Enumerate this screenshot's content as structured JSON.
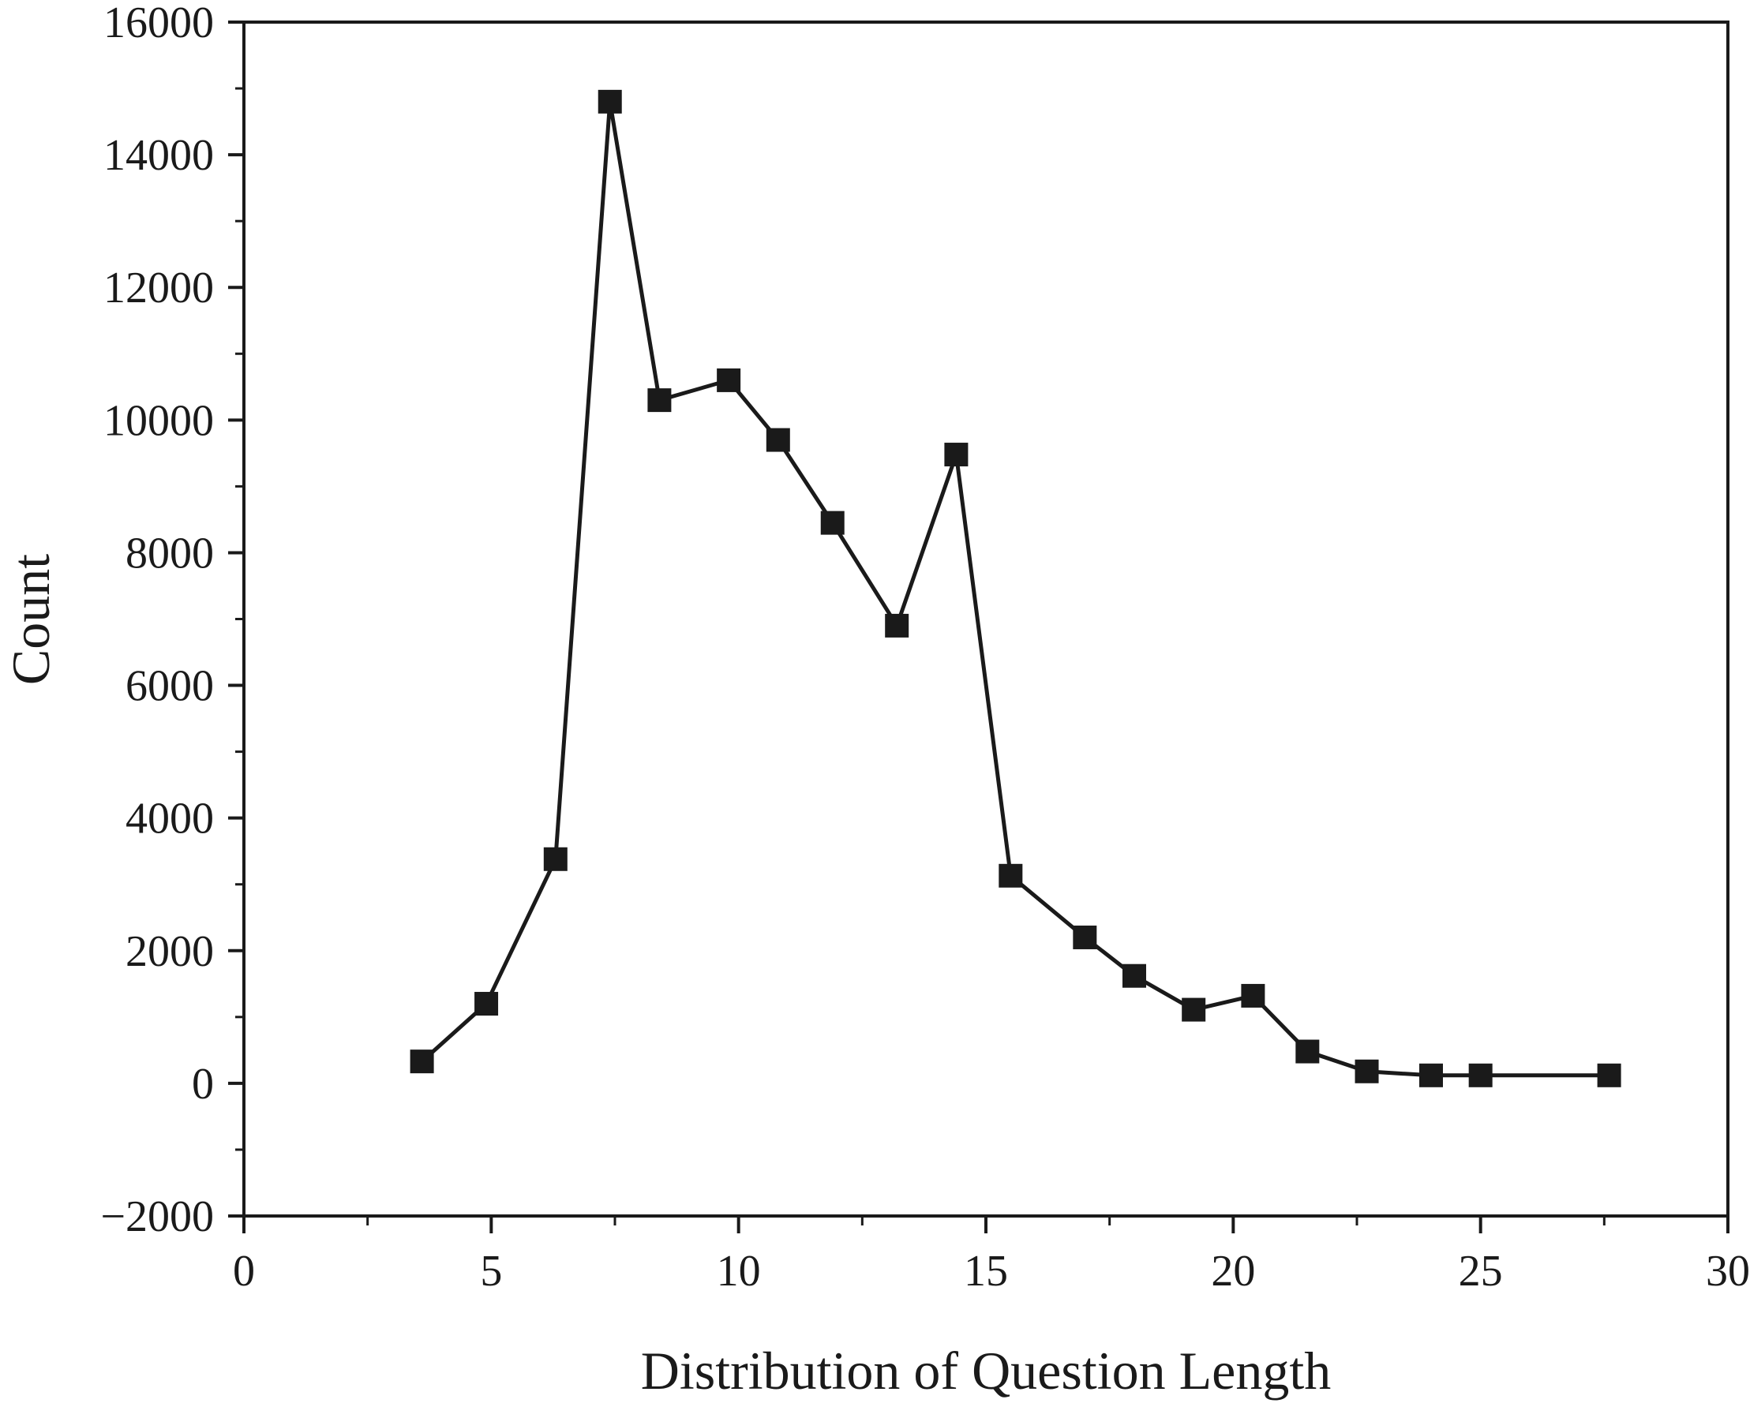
{
  "chart_data": {
    "type": "line",
    "title": "",
    "xlabel": "Distribution of Question Length",
    "ylabel": "Count",
    "xlim": [
      0,
      30
    ],
    "ylim": [
      -2000,
      16000
    ],
    "xticks": [
      0,
      5,
      10,
      15,
      20,
      25,
      30
    ],
    "yticks": [
      -2000,
      0,
      2000,
      4000,
      6000,
      8000,
      10000,
      12000,
      14000,
      16000
    ],
    "xtick_labels": [
      "0",
      "5",
      "10",
      "15",
      "20",
      "25",
      "30"
    ],
    "ytick_labels": [
      "−2000",
      "0",
      "2000",
      "4000",
      "6000",
      "8000",
      "10000",
      "12000",
      "14000",
      "16000"
    ],
    "grid": false,
    "marker": "square",
    "color": "#1a1a1a",
    "series": [
      {
        "x": [
          3.6,
          4.9,
          6.3,
          7.4,
          8.4,
          9.8,
          10.8,
          11.9,
          13.2,
          14.4,
          15.5,
          17.0,
          18.0,
          19.2,
          20.4,
          21.5,
          22.7,
          24.0,
          25.0,
          27.6
        ],
        "y": [
          330,
          1200,
          3380,
          14800,
          10300,
          10600,
          9700,
          8450,
          6900,
          9480,
          3130,
          2200,
          1620,
          1110,
          1320,
          480,
          180,
          120,
          120,
          120
        ]
      }
    ]
  }
}
